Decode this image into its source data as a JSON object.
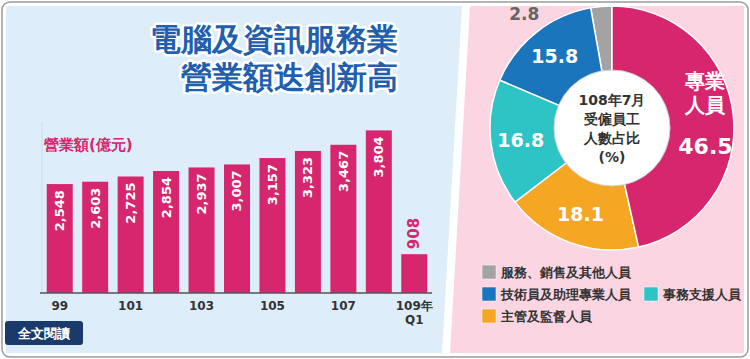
{
  "chart_data": [
    {
      "type": "bar",
      "title": "電腦及資訊服務業\n營業額迭創新高",
      "y_label": "營業額(億元)",
      "categories": [
        "99",
        null,
        "101",
        null,
        "103",
        null,
        "105",
        null,
        "107",
        null,
        "109年\nQ1"
      ],
      "values": [
        2548,
        2603,
        2725,
        2854,
        2937,
        3007,
        3157,
        3323,
        3467,
        3804,
        908
      ],
      "value_labels": [
        "2,548",
        "2,603",
        "2,725",
        "2,854",
        "2,937",
        "3,007",
        "3,157",
        "3,323",
        "3,467",
        "3,804",
        "908"
      ],
      "color": "#d6266e",
      "ylim": [
        0,
        4000
      ],
      "data_labels": true,
      "tick_labels": "x"
    },
    {
      "type": "pie",
      "title": "108年7月\n受僱員工\n人數占比\n(%)",
      "categories": [
        "服務、銷售及其他人員",
        "技術員及助理專業人員",
        "事務支援人員",
        "主管及監督人員",
        "專業人員"
      ],
      "values": [
        2.8,
        15.8,
        16.8,
        18.1,
        46.5
      ],
      "colors": [
        "#a3a3a3",
        "#1b75bc",
        "#2ec4c6",
        "#f5a623",
        "#d6266e"
      ],
      "data_labels": true,
      "legend": "bottom"
    }
  ],
  "link": "全文閱讀"
}
